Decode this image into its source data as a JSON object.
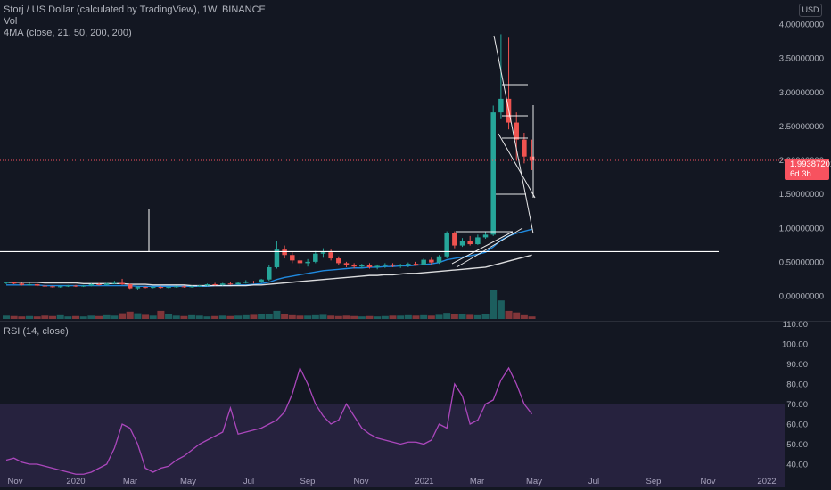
{
  "header": {
    "title": "Storj / US Dollar (calculated by TradingView), 1W, BINANCE",
    "vol_label": "Vol",
    "ma_label": "4MA (close, 21, 50, 200, 200)",
    "currency": "USD"
  },
  "rsi_panel": {
    "label": "RSI (14, close)"
  },
  "last_price": {
    "price": "1.99387201",
    "countdown": "6d 3h"
  },
  "colors": {
    "background": "#131722",
    "up": "#26a69a",
    "down": "#ef5350",
    "current_price": "#f7525f",
    "rsi_line": "#ab47bc",
    "rsi_band": "#7e57c2",
    "ma21": "#2196f3",
    "ma50": "#ffffff",
    "drawing": "#ffffff"
  },
  "chart_data": [
    {
      "type": "candlestick",
      "interval": "1W",
      "x_ticks": [
        "Nov",
        "2020",
        "Mar",
        "May",
        "Jul",
        "Sep",
        "Nov",
        "2021",
        "Mar",
        "May",
        "Jul",
        "Sep",
        "Nov",
        "2022"
      ],
      "y_ticks": [
        "4.00000000",
        "3.50000000",
        "3.00000000",
        "2.50000000",
        "2.00000000",
        "1.50000000",
        "1.00000000",
        "0.50000000",
        "0.00000000"
      ],
      "ylim": [
        0,
        4.0
      ],
      "scale": "linear",
      "candles": [
        [
          0.19,
          0.21,
          0.17,
          0.2
        ],
        [
          0.2,
          0.21,
          0.17,
          0.18
        ],
        [
          0.18,
          0.19,
          0.15,
          0.16
        ],
        [
          0.16,
          0.19,
          0.15,
          0.17
        ],
        [
          0.17,
          0.18,
          0.14,
          0.15
        ],
        [
          0.15,
          0.16,
          0.13,
          0.14
        ],
        [
          0.14,
          0.15,
          0.12,
          0.13
        ],
        [
          0.13,
          0.15,
          0.12,
          0.14
        ],
        [
          0.14,
          0.16,
          0.13,
          0.15
        ],
        [
          0.15,
          0.16,
          0.13,
          0.14
        ],
        [
          0.14,
          0.16,
          0.13,
          0.15
        ],
        [
          0.15,
          0.18,
          0.14,
          0.17
        ],
        [
          0.17,
          0.19,
          0.15,
          0.16
        ],
        [
          0.16,
          0.19,
          0.15,
          0.18
        ],
        [
          0.18,
          0.22,
          0.17,
          0.19
        ],
        [
          0.19,
          0.25,
          0.16,
          0.17
        ],
        [
          0.17,
          0.18,
          0.1,
          0.11
        ],
        [
          0.11,
          0.14,
          0.09,
          0.13
        ],
        [
          0.13,
          0.14,
          0.11,
          0.12
        ],
        [
          0.12,
          0.14,
          0.11,
          0.13
        ],
        [
          0.13,
          0.14,
          0.11,
          0.12
        ],
        [
          0.12,
          0.14,
          0.11,
          0.13
        ],
        [
          0.13,
          0.15,
          0.12,
          0.14
        ],
        [
          0.14,
          0.15,
          0.12,
          0.13
        ],
        [
          0.13,
          0.15,
          0.12,
          0.14
        ],
        [
          0.14,
          0.16,
          0.13,
          0.15
        ],
        [
          0.15,
          0.18,
          0.14,
          0.17
        ],
        [
          0.17,
          0.19,
          0.15,
          0.16
        ],
        [
          0.16,
          0.19,
          0.15,
          0.18
        ],
        [
          0.18,
          0.21,
          0.16,
          0.17
        ],
        [
          0.17,
          0.2,
          0.16,
          0.19
        ],
        [
          0.19,
          0.23,
          0.18,
          0.21
        ],
        [
          0.21,
          0.22,
          0.18,
          0.2
        ],
        [
          0.2,
          0.25,
          0.19,
          0.24
        ],
        [
          0.24,
          0.45,
          0.22,
          0.42
        ],
        [
          0.42,
          0.8,
          0.4,
          0.68
        ],
        [
          0.68,
          0.74,
          0.55,
          0.6
        ],
        [
          0.6,
          0.64,
          0.48,
          0.52
        ],
        [
          0.52,
          0.56,
          0.4,
          0.48
        ],
        [
          0.48,
          0.54,
          0.43,
          0.5
        ],
        [
          0.5,
          0.66,
          0.48,
          0.62
        ],
        [
          0.62,
          0.7,
          0.56,
          0.64
        ],
        [
          0.64,
          0.68,
          0.52,
          0.55
        ],
        [
          0.55,
          0.58,
          0.45,
          0.48
        ],
        [
          0.48,
          0.5,
          0.42,
          0.45
        ],
        [
          0.45,
          0.48,
          0.4,
          0.43
        ],
        [
          0.43,
          0.47,
          0.4,
          0.45
        ],
        [
          0.45,
          0.48,
          0.4,
          0.42
        ],
        [
          0.42,
          0.46,
          0.39,
          0.44
        ],
        [
          0.44,
          0.48,
          0.41,
          0.46
        ],
        [
          0.46,
          0.48,
          0.42,
          0.44
        ],
        [
          0.44,
          0.47,
          0.41,
          0.45
        ],
        [
          0.45,
          0.49,
          0.42,
          0.47
        ],
        [
          0.47,
          0.5,
          0.44,
          0.46
        ],
        [
          0.46,
          0.55,
          0.45,
          0.53
        ],
        [
          0.53,
          0.56,
          0.46,
          0.49
        ],
        [
          0.49,
          0.6,
          0.47,
          0.58
        ],
        [
          0.58,
          0.95,
          0.55,
          0.92
        ],
        [
          0.92,
          0.95,
          0.7,
          0.74
        ],
        [
          0.74,
          0.85,
          0.72,
          0.8
        ],
        [
          0.8,
          0.88,
          0.74,
          0.76
        ],
        [
          0.76,
          0.9,
          0.75,
          0.86
        ],
        [
          0.86,
          0.95,
          0.84,
          0.9
        ],
        [
          0.9,
          2.8,
          0.88,
          2.7
        ],
        [
          2.7,
          3.85,
          2.6,
          2.9
        ],
        [
          2.9,
          3.8,
          2.45,
          2.55
        ],
        [
          2.55,
          2.7,
          2.0,
          2.3
        ],
        [
          2.3,
          2.4,
          1.95,
          2.05
        ],
        [
          2.05,
          2.3,
          1.85,
          1.99
        ]
      ],
      "volume": [
        0.3,
        0.25,
        0.2,
        0.25,
        0.2,
        0.3,
        0.25,
        0.35,
        0.2,
        0.25,
        0.2,
        0.3,
        0.25,
        0.35,
        0.3,
        0.6,
        0.8,
        0.6,
        0.4,
        0.3,
        0.9,
        0.5,
        0.3,
        0.25,
        0.35,
        0.3,
        0.2,
        0.25,
        0.3,
        0.25,
        0.3,
        0.35,
        0.4,
        0.45,
        0.5,
        0.9,
        0.5,
        0.35,
        0.3,
        0.3,
        0.35,
        0.4,
        0.3,
        0.25,
        0.3,
        0.25,
        0.2,
        0.25,
        0.2,
        0.25,
        0.3,
        0.3,
        0.35,
        0.3,
        0.35,
        0.3,
        0.4,
        0.65,
        0.45,
        0.5,
        0.4,
        0.35,
        0.45,
        3.5,
        2.2,
        0.9,
        0.7,
        0.35,
        0.2
      ],
      "moving_averages": [
        {
          "length": 21,
          "values": [
            0.16,
            0.16,
            0.16,
            0.16,
            0.16,
            0.15,
            0.15,
            0.15,
            0.15,
            0.15,
            0.15,
            0.15,
            0.15,
            0.15,
            0.15,
            0.15,
            0.15,
            0.14,
            0.14,
            0.14,
            0.14,
            0.14,
            0.14,
            0.14,
            0.14,
            0.14,
            0.14,
            0.15,
            0.15,
            0.15,
            0.16,
            0.16,
            0.17,
            0.18,
            0.2,
            0.24,
            0.27,
            0.29,
            0.31,
            0.33,
            0.35,
            0.37,
            0.38,
            0.39,
            0.4,
            0.41,
            0.41,
            0.42,
            0.42,
            0.43,
            0.43,
            0.44,
            0.44,
            0.45,
            0.46,
            0.47,
            0.49,
            0.53,
            0.55,
            0.57,
            0.59,
            0.61,
            0.64,
            0.72,
            0.82,
            0.88,
            0.92,
            0.95,
            0.98
          ]
        },
        {
          "length": 50,
          "values": [
            0.2,
            0.2,
            0.2,
            0.2,
            0.2,
            0.19,
            0.19,
            0.19,
            0.19,
            0.19,
            0.18,
            0.18,
            0.18,
            0.18,
            0.18,
            0.18,
            0.17,
            0.17,
            0.17,
            0.16,
            0.16,
            0.16,
            0.16,
            0.16,
            0.15,
            0.15,
            0.15,
            0.15,
            0.15,
            0.15,
            0.15,
            0.15,
            0.16,
            0.16,
            0.17,
            0.18,
            0.19,
            0.2,
            0.21,
            0.22,
            0.23,
            0.24,
            0.25,
            0.26,
            0.27,
            0.28,
            0.29,
            0.3,
            0.3,
            0.31,
            0.31,
            0.32,
            0.33,
            0.33,
            0.34,
            0.35,
            0.36,
            0.37,
            0.38,
            0.39,
            0.4,
            0.41,
            0.42,
            0.45,
            0.48,
            0.51,
            0.54,
            0.57,
            0.6
          ]
        }
      ],
      "horizontal_lines": [
        0.65
      ]
    },
    {
      "type": "line",
      "name": "RSI (14, close)",
      "y_ticks": [
        "110.00",
        "100.00",
        "90.00",
        "80.00",
        "70.00",
        "60.00",
        "50.00",
        "40.00"
      ],
      "ylim": [
        35,
        110
      ],
      "band": [
        30,
        70
      ],
      "values": [
        42,
        43,
        41,
        40,
        40,
        39,
        38,
        37,
        36,
        35,
        35,
        36,
        38,
        40,
        48,
        60,
        58,
        50,
        38,
        36,
        38,
        39,
        42,
        44,
        47,
        50,
        52,
        54,
        56,
        68,
        55,
        56,
        57,
        58,
        60,
        62,
        66,
        75,
        88,
        80,
        70,
        64,
        60,
        62,
        70,
        64,
        58,
        55,
        53,
        52,
        51,
        50,
        51,
        51,
        50,
        52,
        60,
        58,
        80,
        74,
        60,
        62,
        70,
        72,
        82,
        88,
        80,
        70,
        65
      ]
    }
  ]
}
